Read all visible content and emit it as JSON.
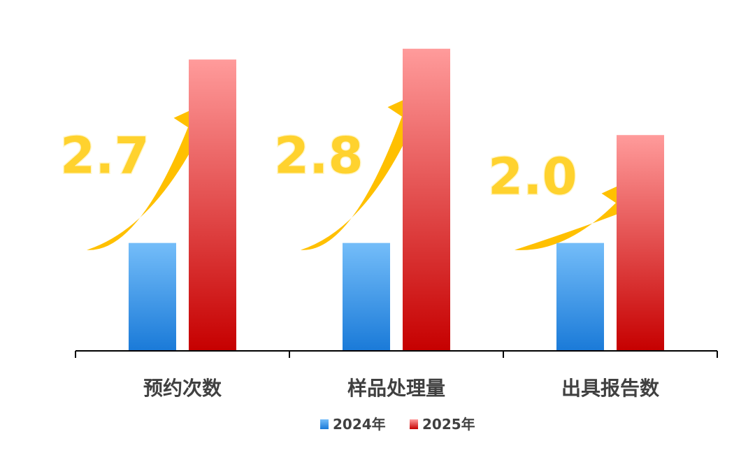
{
  "chart_data": {
    "type": "bar",
    "categories": [
      "预约次数",
      "样品处理量",
      "出具报告数"
    ],
    "series": [
      {
        "name": "2024年",
        "values": [
          1.0,
          1.0,
          1.0
        ],
        "color": "#1a7ad8",
        "color_light": "#74bdf9"
      },
      {
        "name": "2025年",
        "values": [
          2.7,
          2.8,
          2.0
        ],
        "color": "#c60000",
        "color_light": "#ff9b9b"
      }
    ],
    "growth_labels": [
      "2.7",
      "2.8",
      "2.0"
    ],
    "growth_arrow_color": "#ffc000",
    "ylim": [
      0,
      2.85
    ],
    "grid": false,
    "legend_position": "bottom"
  }
}
